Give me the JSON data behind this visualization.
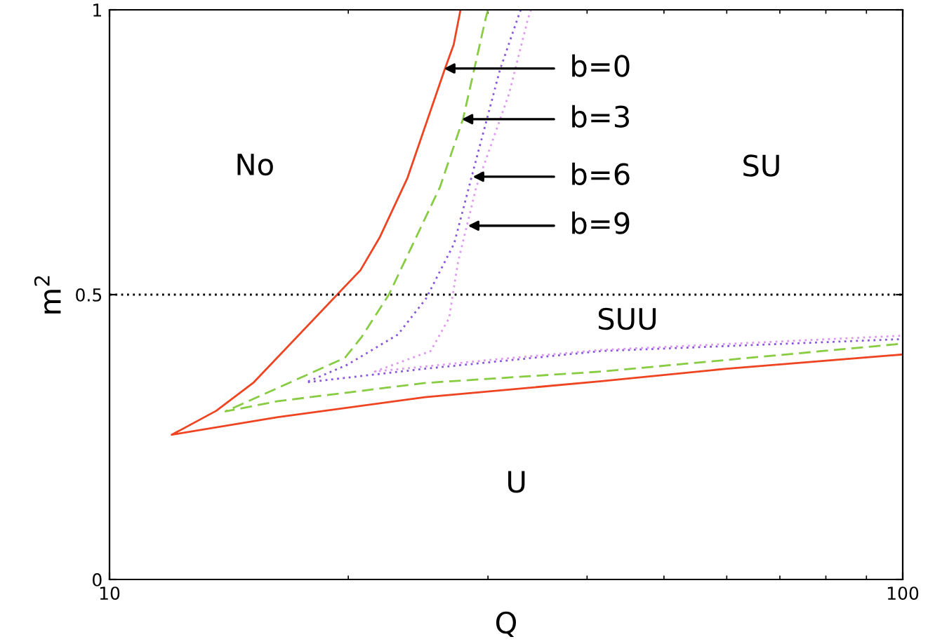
{
  "chart_data": {
    "type": "line",
    "xlabel": "Q",
    "ylabel": "m$^{2}$",
    "log": "x",
    "grid": false,
    "xlim": [
      10,
      100
    ],
    "xticks": [
      10,
      100
    ],
    "ylim": [
      0,
      1
    ],
    "yticks": [
      0,
      0.5,
      1
    ],
    "series": [
      {
        "color": "#ee4422",
        "line_style": "solid",
        "x": [
          27.7,
          27.16,
          26.44,
          23.75,
          21.9,
          20.72,
          15.2,
          13.63,
          11.98,
          16.3,
          25,
          41.7,
          60,
          100
        ],
        "values": [
          1,
          0.939,
          0.894,
          0.705,
          0.6,
          0.543,
          0.346,
          0.296,
          0.254,
          0.285,
          0.32,
          0.348,
          0.37,
          0.395
        ]
      },
      {
        "color": "#88cc44",
        "line_style": "dashed",
        "x": [
          30,
          29.8,
          27.9,
          26.1,
          22.5,
          20.8,
          19.8,
          14.0,
          16.3,
          25,
          41.7,
          100
        ],
        "values": [
          1,
          0.985,
          0.808,
          0.689,
          0.5,
          0.426,
          0.389,
          0.295,
          0.313,
          0.345,
          0.365,
          0.414
        ]
      },
      {
        "color": "#8855dd",
        "line_style": "dotted",
        "x": [
          33,
          32.7,
          31.05,
          28.7,
          27.2,
          25.06,
          23.1,
          19.95,
          17.7,
          25,
          41.7,
          100
        ],
        "values": [
          1,
          0.985,
          0.894,
          0.714,
          0.59,
          0.493,
          0.43,
          0.377,
          0.346,
          0.37,
          0.401,
          0.422
        ]
      },
      {
        "color": "#dd99ee",
        "line_style": "dotted",
        "x": [
          34,
          33.7,
          31.9,
          29.0,
          27.5,
          26.8,
          25.4,
          21.6,
          30,
          41.7,
          100
        ],
        "values": [
          1,
          0.985,
          0.853,
          0.689,
          0.557,
          0.459,
          0.401,
          0.365,
          0.385,
          0.403,
          0.428
        ]
      }
    ],
    "ref_lines": [
      {
        "axis": "y",
        "value": 0.5,
        "color": "#000000",
        "line_style": "dotted"
      }
    ],
    "annotations": [
      "No",
      "SU",
      "SUU",
      "U",
      {
        "text": "b=0",
        "x": 26.4,
        "y": 0.897
      },
      {
        "text": "b=3",
        "x": 27.8,
        "y": 0.808
      },
      {
        "text": "b=6",
        "x": 28.7,
        "y": 0.707
      },
      {
        "text": "b=9",
        "x": 28.3,
        "y": 0.621
      }
    ]
  }
}
